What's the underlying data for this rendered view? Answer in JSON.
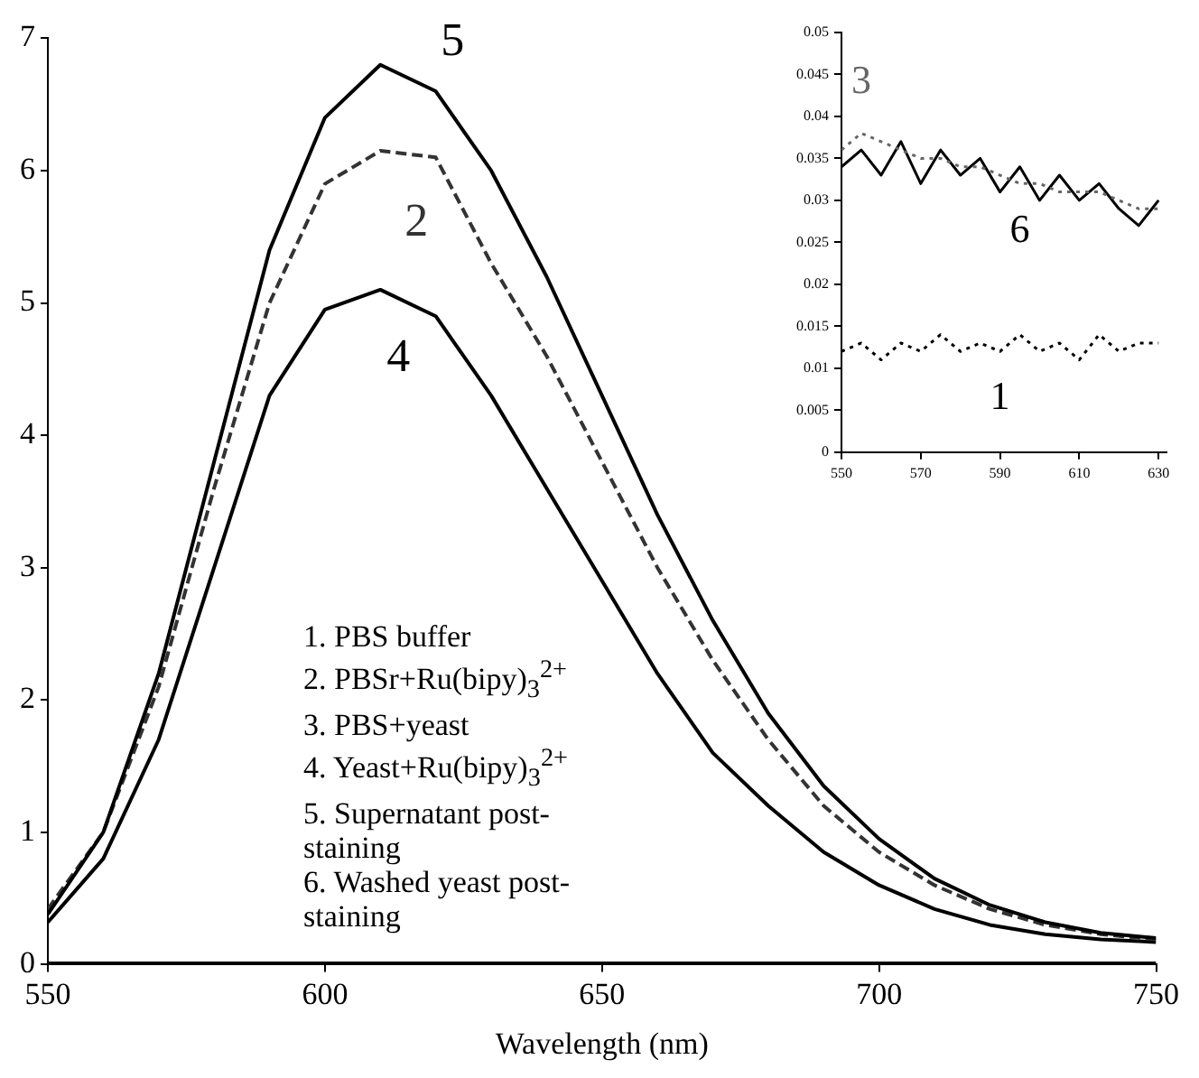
{
  "chart_data": [
    {
      "type": "line",
      "xlabel": "Wavelength (nm)",
      "xlim": [
        550,
        750
      ],
      "xticks": [
        550,
        600,
        650,
        700,
        750
      ],
      "ylim": [
        0,
        7
      ],
      "yticks": [
        0,
        1,
        2,
        3,
        4,
        5,
        6,
        7
      ],
      "grid": false,
      "legend": false,
      "marker": "none",
      "x": [
        550,
        560,
        570,
        580,
        590,
        600,
        610,
        620,
        630,
        640,
        650,
        660,
        670,
        680,
        690,
        700,
        710,
        720,
        730,
        740,
        750
      ],
      "series": [
        {
          "name": "5",
          "color": "#000000",
          "line_style": "solid",
          "values": [
            0.38,
            1.0,
            2.2,
            3.8,
            5.4,
            6.4,
            6.8,
            6.6,
            6.0,
            5.2,
            4.3,
            3.4,
            2.6,
            1.9,
            1.35,
            0.95,
            0.65,
            0.45,
            0.32,
            0.24,
            0.2
          ]
        },
        {
          "name": "2",
          "color": "#333333",
          "line_style": "dashed",
          "values": [
            0.42,
            1.0,
            2.1,
            3.6,
            5.0,
            5.9,
            6.15,
            6.1,
            5.3,
            4.6,
            3.8,
            3.0,
            2.3,
            1.7,
            1.2,
            0.85,
            0.6,
            0.42,
            0.3,
            0.23,
            0.19
          ]
        },
        {
          "name": "4",
          "color": "#000000",
          "line_style": "solid",
          "values": [
            0.32,
            0.8,
            1.7,
            3.0,
            4.3,
            4.95,
            5.1,
            4.9,
            4.3,
            3.6,
            2.9,
            2.2,
            1.6,
            1.2,
            0.85,
            0.6,
            0.42,
            0.3,
            0.23,
            0.19,
            0.17
          ]
        },
        {
          "color": "#000000",
          "line_style": "solid",
          "values": [
            0.01,
            0.01,
            0.01,
            0.01,
            0.01,
            0.01,
            0.01,
            0.01,
            0.01,
            0.01,
            0.01,
            0.01,
            0.01,
            0.01,
            0.01,
            0.01,
            0.01,
            0.01,
            0.01,
            0.01,
            0.01
          ]
        }
      ],
      "annotations": [
        "1.  PBS buffer",
        "2.  PBSr+Ru(bipy)$_{3}$$^{2+}$",
        "3.  PBS+yeast",
        "4.  Yeast+Ru(bipy)$_{3}$$^{2+}$",
        "5.  Supernatant post-staining",
        "6.  Washed yeast post-staining"
      ]
    },
    {
      "type": "line",
      "xlim": [
        550,
        632
      ],
      "xticks": [
        550,
        570,
        590,
        610,
        630
      ],
      "ylim": [
        0,
        0.05
      ],
      "yticks": [
        0,
        0.005,
        0.01,
        0.015,
        0.02,
        0.025,
        0.03,
        0.035,
        0.04,
        0.045,
        0.05
      ],
      "grid": false,
      "legend": false,
      "marker": "none",
      "x": [
        550,
        555,
        560,
        565,
        570,
        575,
        580,
        585,
        590,
        595,
        600,
        605,
        610,
        615,
        620,
        625,
        630
      ],
      "series": [
        {
          "name": "3",
          "color": "#666666",
          "line_style": "dotted",
          "values": [
            0.036,
            0.038,
            0.037,
            0.036,
            0.035,
            0.035,
            0.034,
            0.034,
            0.033,
            0.032,
            0.032,
            0.031,
            0.031,
            0.031,
            0.03,
            0.029,
            0.029
          ]
        },
        {
          "name": "6",
          "color": "#000000",
          "line_style": "solid",
          "values": [
            0.034,
            0.036,
            0.033,
            0.037,
            0.032,
            0.036,
            0.033,
            0.035,
            0.031,
            0.034,
            0.03,
            0.033,
            0.03,
            0.032,
            0.029,
            0.027,
            0.03
          ]
        },
        {
          "name": "1",
          "color": "#000000",
          "line_style": "dotted",
          "values": [
            0.012,
            0.013,
            0.011,
            0.013,
            0.012,
            0.014,
            0.012,
            0.013,
            0.012,
            0.014,
            0.012,
            0.013,
            0.011,
            0.014,
            0.012,
            0.013,
            0.013
          ]
        }
      ]
    }
  ]
}
